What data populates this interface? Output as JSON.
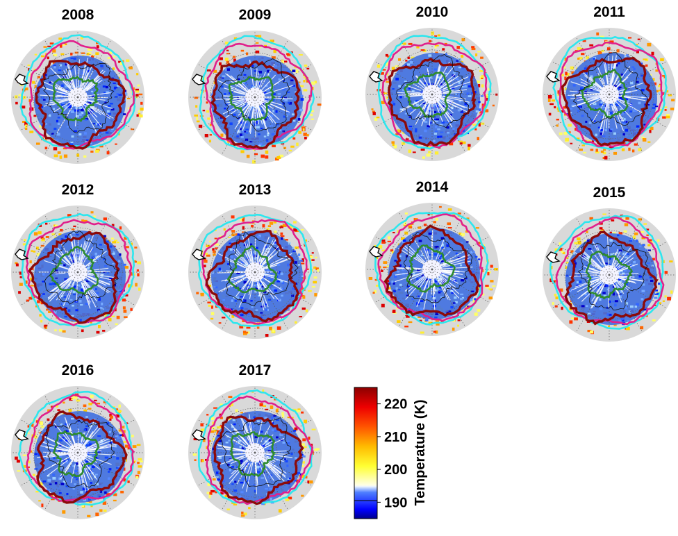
{
  "chart_data": {
    "type": "heatmap",
    "description_kind": "polar stereographic maps",
    "panels": [
      {
        "title": "2008"
      },
      {
        "title": "2009"
      },
      {
        "title": "2010"
      },
      {
        "title": "2011"
      },
      {
        "title": "2012"
      },
      {
        "title": "2013"
      },
      {
        "title": "2014"
      },
      {
        "title": "2015"
      },
      {
        "title": "2016"
      },
      {
        "title": "2017"
      }
    ],
    "colorbar": {
      "label": "Temperature (K)",
      "ticks": [
        190,
        200,
        210,
        220
      ],
      "range": [
        185,
        225
      ],
      "split_value": 195,
      "colors": [
        "#00008b",
        "#0000ff",
        "#4f7fff",
        "#ffffff",
        "#ffff66",
        "#ffcc00",
        "#ff6600",
        "#ff0000",
        "#8b0000"
      ]
    },
    "contour_colors": {
      "cyan": "#2ee6ee",
      "magenta": "#e0208c",
      "dark_red": "#8b0a0a",
      "green": "#2e8b2e"
    }
  }
}
